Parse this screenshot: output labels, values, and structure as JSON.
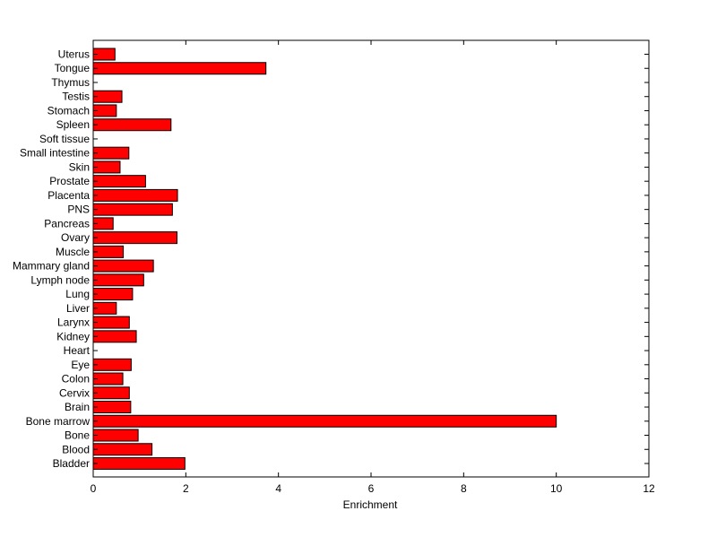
{
  "chart_data": {
    "type": "bar",
    "orientation": "horizontal",
    "title": "",
    "xlabel": "Enrichment",
    "ylabel": "",
    "xlim": [
      0,
      12
    ],
    "xticks": [
      0,
      2,
      4,
      6,
      8,
      10,
      12
    ],
    "grid": false,
    "legend": "none",
    "bar_color": "#ff0000",
    "bar_edge_color": "#000000",
    "categories": [
      "Bladder",
      "Blood",
      "Bone",
      "Bone marrow",
      "Brain",
      "Cervix",
      "Colon",
      "Eye",
      "Heart",
      "Kidney",
      "Larynx",
      "Liver",
      "Lung",
      "Lymph node",
      "Mammary gland",
      "Muscle",
      "Ovary",
      "Pancreas",
      "PNS",
      "Placenta",
      "Prostate",
      "Skin",
      "Small intestine",
      "Soft tissue",
      "Spleen",
      "Stomach",
      "Testis",
      "Thymus",
      "Tongue",
      "Uterus"
    ],
    "values": [
      1.98,
      1.27,
      0.97,
      10.0,
      0.81,
      0.78,
      0.64,
      0.82,
      0,
      0.93,
      0.78,
      0.5,
      0.85,
      1.09,
      1.3,
      0.65,
      1.81,
      0.43,
      1.71,
      1.82,
      1.13,
      0.58,
      0.77,
      0,
      1.68,
      0.5,
      0.62,
      0,
      3.73,
      0.47
    ]
  }
}
